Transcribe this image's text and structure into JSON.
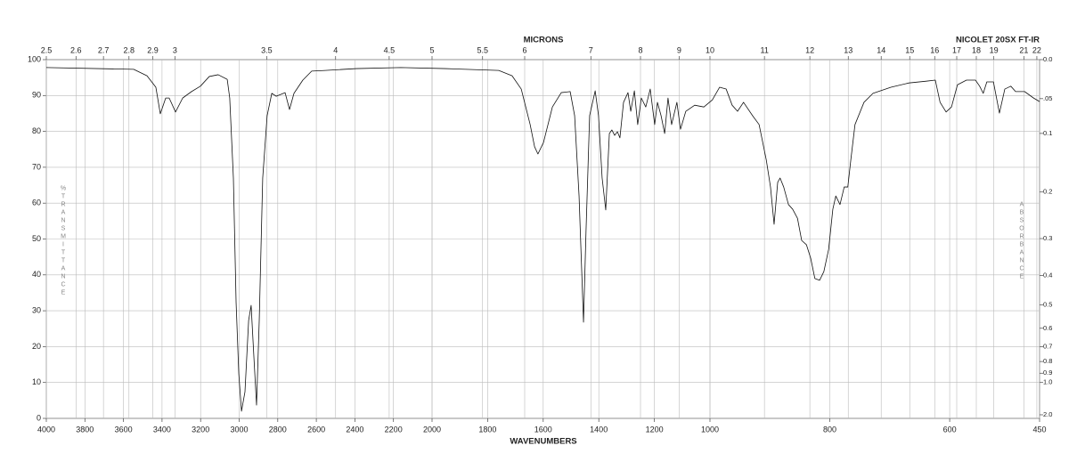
{
  "chart_data": {
    "type": "line",
    "title": "NICOLET 20SX FT-IR",
    "x_label": "WAVENUMBERS",
    "x2_label": "MICRONS",
    "y_label": "%TRANSMITTANCE",
    "y2_label": "ABSORBANCE",
    "xlim": [
      4000,
      450
    ],
    "xticks": [
      4000,
      3800,
      3600,
      3400,
      3200,
      3000,
      2800,
      2600,
      2400,
      2200,
      2000,
      1800,
      1600,
      1400,
      1200,
      1000,
      800,
      600,
      450
    ],
    "x2ticks": [
      2.5,
      2.6,
      2.7,
      2.8,
      2.9,
      3,
      3.5,
      4,
      4.5,
      5,
      5.5,
      6,
      7,
      8,
      9,
      10,
      11,
      12,
      13,
      14,
      15,
      16,
      17,
      18,
      19,
      21,
      22
    ],
    "ylim": [
      0,
      100
    ],
    "yticks": [
      0,
      10,
      20,
      30,
      40,
      50,
      60,
      70,
      80,
      90,
      100
    ],
    "y2ticks": [
      {
        "value": 0,
        "label": "0.0"
      },
      {
        "value": 0.05,
        "label": ".05"
      },
      0.1,
      0.2,
      0.3,
      0.4,
      0.5,
      0.6,
      0.7,
      0.8,
      0.9,
      {
        "value": 1,
        "label": "1.0"
      },
      {
        "value": 2,
        "label": "2.0"
      }
    ],
    "grid": true,
    "color": "#111111",
    "x": [
      4000,
      3547,
      3478,
      3432,
      3409,
      3381,
      3363,
      3330,
      3293,
      3247,
      3201,
      3155,
      3109,
      3062,
      3049,
      3030,
      3016,
      3002,
      2988,
      2970,
      2951,
      2938,
      2924,
      2910,
      2896,
      2878,
      2855,
      2831,
      2808,
      2762,
      2739,
      2716,
      2670,
      2624,
      2554,
      2393,
      2162,
      1952,
      1760,
      1712,
      1679,
      1647,
      1631,
      1619,
      1599,
      1567,
      1535,
      1503,
      1487,
      1471,
      1455,
      1446,
      1433,
      1413,
      1401,
      1388,
      1375,
      1362,
      1353,
      1343,
      1333,
      1324,
      1311,
      1295,
      1285,
      1272,
      1260,
      1247,
      1231,
      1215,
      1199,
      1189,
      1176,
      1163,
      1151,
      1138,
      1119,
      1106,
      1087,
      1055,
      1022,
      996,
      984,
      973,
      963,
      954,
      944,
      929,
      918,
      906,
      899,
      893,
      887,
      883,
      877,
      869,
      862,
      854,
      847,
      839,
      832,
      825,
      817,
      810,
      802,
      795,
      790,
      783,
      776,
      770,
      765,
      758,
      743,
      728,
      698,
      668,
      639,
      624,
      616,
      606,
      597,
      587,
      572,
      557,
      550,
      544,
      538,
      527,
      517,
      508,
      498,
      490,
      475,
      460,
      450
    ],
    "values": [
      97.8,
      97.3,
      95.5,
      92.3,
      84.9,
      89.3,
      89.3,
      85.4,
      89.3,
      91.1,
      92.6,
      95.3,
      95.8,
      94.5,
      89.3,
      67.0,
      32.3,
      12.4,
      2.0,
      7.4,
      27.3,
      31.5,
      17.4,
      3.7,
      27.3,
      67.0,
      84.4,
      90.6,
      89.8,
      90.8,
      86.1,
      90.6,
      94.3,
      96.8,
      97.0,
      97.5,
      97.8,
      97.5,
      97.0,
      95.5,
      91.8,
      81.9,
      75.7,
      73.7,
      76.9,
      86.8,
      90.8,
      91.1,
      84.4,
      62.0,
      26.8,
      52.1,
      84.4,
      91.3,
      84.4,
      67.0,
      58.1,
      79.4,
      80.4,
      78.9,
      79.9,
      78.2,
      88.1,
      90.8,
      85.6,
      91.3,
      81.9,
      89.3,
      86.8,
      91.8,
      81.9,
      88.1,
      84.4,
      79.4,
      89.3,
      81.9,
      88.1,
      80.6,
      85.6,
      87.3,
      86.8,
      88.8,
      92.3,
      91.8,
      87.3,
      85.6,
      88.1,
      84.4,
      81.9,
      72.0,
      64.5,
      54.1,
      65.8,
      67.0,
      64.5,
      59.6,
      58.3,
      55.8,
      49.6,
      48.4,
      44.7,
      39.0,
      38.5,
      40.9,
      47.1,
      58.3,
      62.0,
      59.6,
      64.5,
      64.5,
      72.0,
      81.9,
      88.1,
      90.6,
      92.3,
      93.5,
      94.0,
      94.3,
      88.1,
      85.4,
      86.8,
      93.0,
      94.3,
      94.3,
      92.6,
      90.6,
      93.8,
      93.8,
      85.1,
      91.8,
      92.6,
      91.1,
      91.1,
      89.3,
      88.3
    ]
  }
}
